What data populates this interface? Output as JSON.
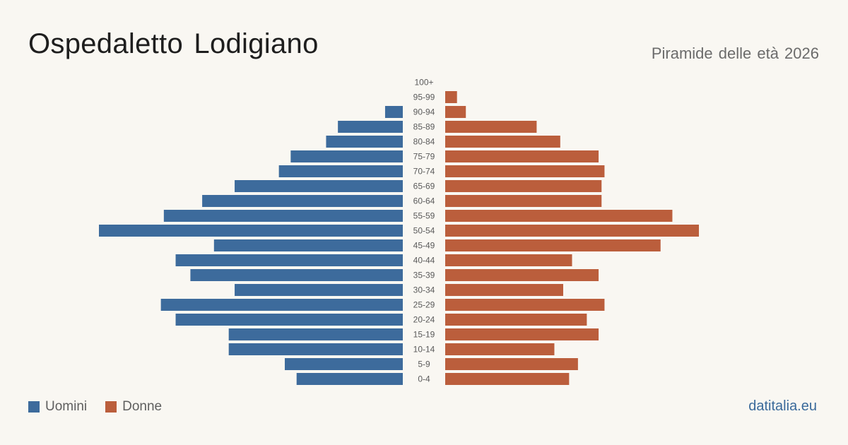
{
  "header": {
    "title": "Ospedaletto Lodigiano",
    "subtitle": "Piramide delle età 2026"
  },
  "legend": {
    "men_label": "Uomini",
    "women_label": "Donne"
  },
  "brand": "datitalia.eu",
  "colors": {
    "men": "#3d6b9c",
    "women": "#bb5e3c",
    "label": "#5a5a5a",
    "background": "#f9f7f2"
  },
  "chart_data": {
    "type": "bar",
    "orientation": "horizontal-pyramid",
    "title": "Piramide delle età 2026",
    "categories": [
      "100+",
      "95-99",
      "90-94",
      "85-89",
      "80-84",
      "75-79",
      "70-74",
      "65-69",
      "60-64",
      "55-59",
      "50-54",
      "45-49",
      "40-44",
      "35-39",
      "30-34",
      "25-29",
      "20-24",
      "15-19",
      "10-14",
      "5-9",
      "0-4"
    ],
    "series": [
      {
        "name": "Uomini",
        "values": [
          0,
          0,
          6,
          22,
          26,
          38,
          42,
          57,
          68,
          81,
          103,
          64,
          77,
          72,
          57,
          82,
          77,
          59,
          59,
          40,
          36
        ]
      },
      {
        "name": "Donne",
        "values": [
          0,
          4,
          7,
          31,
          39,
          52,
          54,
          53,
          53,
          77,
          86,
          73,
          43,
          52,
          40,
          54,
          48,
          52,
          37,
          45,
          42
        ]
      }
    ],
    "xlim": [
      0,
      103
    ],
    "grid": false,
    "legend_position": "bottom-left"
  }
}
